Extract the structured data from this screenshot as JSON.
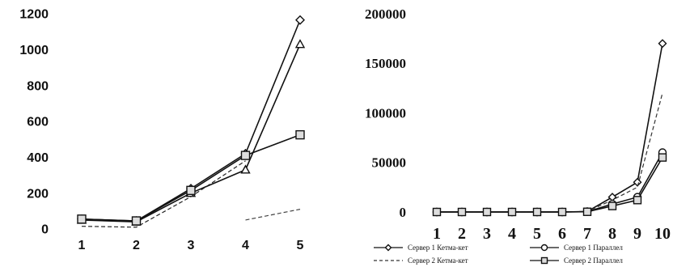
{
  "chart_data": [
    {
      "type": "line",
      "title": "",
      "xlabel": "",
      "ylabel": "",
      "x": [
        1,
        2,
        3,
        4,
        5
      ],
      "x_tick_labels": [
        "1",
        "2",
        "3",
        "4",
        "5"
      ],
      "y_tick_labels": [
        "0",
        "200",
        "400",
        "600",
        "800",
        "1000",
        "1200"
      ],
      "ylim": [
        0,
        1200
      ],
      "grid": false,
      "series": [
        {
          "values": [
            55,
            45,
            225,
            420,
            1165
          ],
          "marker": "diamond",
          "color": "#111111",
          "dash": "solid"
        },
        {
          "values": [
            50,
            40,
            200,
            330,
            1030
          ],
          "marker": "triangle",
          "color": "#111111",
          "dash": "solid"
        },
        {
          "values": [
            55,
            45,
            215,
            410,
            525
          ],
          "marker": "square",
          "color": "#111111",
          "dash": "solid"
        },
        {
          "values": [
            15,
            10,
            180,
            380,
            null
          ],
          "marker": "none",
          "color": "#222222",
          "dash": "dashed"
        },
        {
          "values": [
            null,
            null,
            null,
            50,
            110
          ],
          "marker": "none",
          "color": "#444444",
          "dash": "dashed"
        }
      ]
    },
    {
      "type": "line",
      "title": "",
      "xlabel": "",
      "ylabel": "",
      "x": [
        1,
        2,
        3,
        4,
        5,
        6,
        7,
        8,
        9,
        10
      ],
      "x_tick_labels": [
        "1",
        "2",
        "3",
        "4",
        "5",
        "6",
        "7",
        "8",
        "9",
        "10"
      ],
      "y_tick_labels": [
        "0",
        "50000",
        "100000",
        "150000",
        "200000"
      ],
      "ylim": [
        0,
        200000
      ],
      "grid": false,
      "legend_position": "bottom",
      "series": [
        {
          "name": "Сервер 1 Кетма-кет",
          "values": [
            0,
            0,
            0,
            0,
            0,
            0,
            500,
            15000,
            30000,
            170000
          ],
          "marker": "diamond",
          "color": "#111111",
          "dash": "solid"
        },
        {
          "name": "Сервер 1 Параллел",
          "values": [
            0,
            0,
            0,
            0,
            0,
            0,
            300,
            8000,
            15000,
            60000
          ],
          "marker": "circle",
          "color": "#111111",
          "dash": "solid"
        },
        {
          "name": "Сервер 2 Кетма-кет",
          "values": [
            0,
            0,
            0,
            0,
            0,
            0,
            600,
            12000,
            25000,
            120000
          ],
          "marker": "none",
          "color": "#333333",
          "dash": "dashed"
        },
        {
          "name": "Сервер 2 Параллел",
          "values": [
            0,
            0,
            0,
            0,
            0,
            0,
            200,
            6000,
            12000,
            55000
          ],
          "marker": "square",
          "color": "#111111",
          "dash": "solid"
        }
      ]
    }
  ]
}
